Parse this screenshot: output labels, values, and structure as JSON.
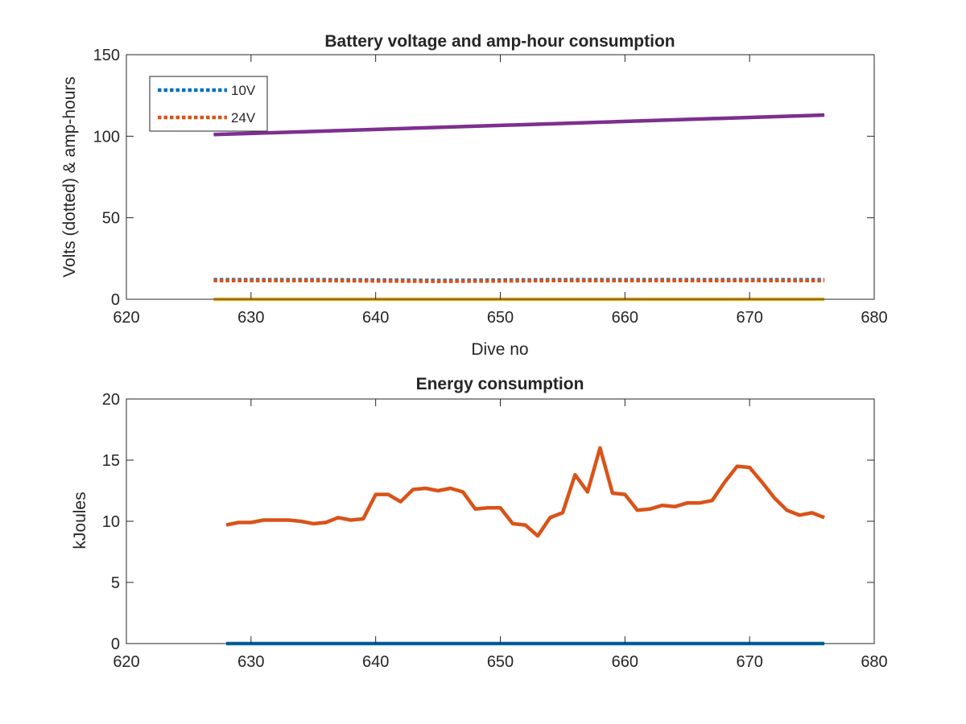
{
  "chart_data": [
    {
      "type": "line",
      "title": "Battery voltage and amp-hour consumption",
      "xlabel": "Dive no",
      "ylabel": "Volts (dotted) & amp-hours",
      "xlim": [
        620,
        680
      ],
      "ylim": [
        0,
        150
      ],
      "xticks": [
        620,
        630,
        640,
        650,
        660,
        670,
        680
      ],
      "yticks": [
        0,
        50,
        100,
        150
      ],
      "grid": false,
      "legend": {
        "placement": "top-left",
        "entries": [
          "10V",
          "24V"
        ]
      },
      "series": [
        {
          "name": "10V",
          "style": "dotted",
          "color": "#0072BD",
          "x": [
            627,
            635,
            645,
            655,
            665,
            676
          ],
          "y": [
            12,
            12,
            11.5,
            12,
            12,
            12
          ]
        },
        {
          "name": "24V",
          "style": "dotted",
          "color": "#D95319",
          "x": [
            627,
            635,
            645,
            655,
            665,
            676
          ],
          "y": [
            11.5,
            11.5,
            11,
            11.5,
            11.5,
            11.5
          ]
        },
        {
          "style": "solid",
          "color": "#EDB120",
          "x": [
            627,
            676
          ],
          "y": [
            0,
            0
          ]
        },
        {
          "style": "solid",
          "color": "#7E2F8E",
          "x": [
            627,
            676
          ],
          "y": [
            101,
            113
          ]
        }
      ]
    },
    {
      "type": "line",
      "title": "Energy consumption",
      "xlabel": "",
      "ylabel": "kJoules",
      "xlim": [
        620,
        680
      ],
      "ylim": [
        0,
        20
      ],
      "xticks": [
        620,
        630,
        640,
        650,
        660,
        670,
        680
      ],
      "yticks": [
        0,
        5,
        10,
        15,
        20
      ],
      "grid": false,
      "series": [
        {
          "style": "solid",
          "color": "#0072BD",
          "x": [
            628,
            676
          ],
          "y": [
            0,
            0
          ]
        },
        {
          "style": "solid",
          "color": "#D95319",
          "x": [
            628,
            629,
            630,
            631,
            632,
            633,
            634,
            635,
            636,
            637,
            638,
            639,
            640,
            641,
            642,
            643,
            644,
            645,
            646,
            647,
            648,
            649,
            650,
            651,
            652,
            653,
            654,
            655,
            656,
            657,
            658,
            659,
            660,
            661,
            662,
            663,
            664,
            665,
            666,
            667,
            668,
            669,
            670,
            671,
            672,
            673,
            674,
            675,
            676
          ],
          "y": [
            9.7,
            9.9,
            9.9,
            10.1,
            10.1,
            10.1,
            10.0,
            9.8,
            9.9,
            10.3,
            10.1,
            10.2,
            12.2,
            12.2,
            11.6,
            12.6,
            12.7,
            12.5,
            12.7,
            12.4,
            11.0,
            11.1,
            11.1,
            9.8,
            9.7,
            8.8,
            10.3,
            10.7,
            13.8,
            12.4,
            16.0,
            12.3,
            12.2,
            10.9,
            11.0,
            11.3,
            11.2,
            11.5,
            11.5,
            11.7,
            13.2,
            14.5,
            14.4,
            13.2,
            11.9,
            10.9,
            10.5,
            10.7,
            10.3
          ]
        }
      ]
    }
  ]
}
